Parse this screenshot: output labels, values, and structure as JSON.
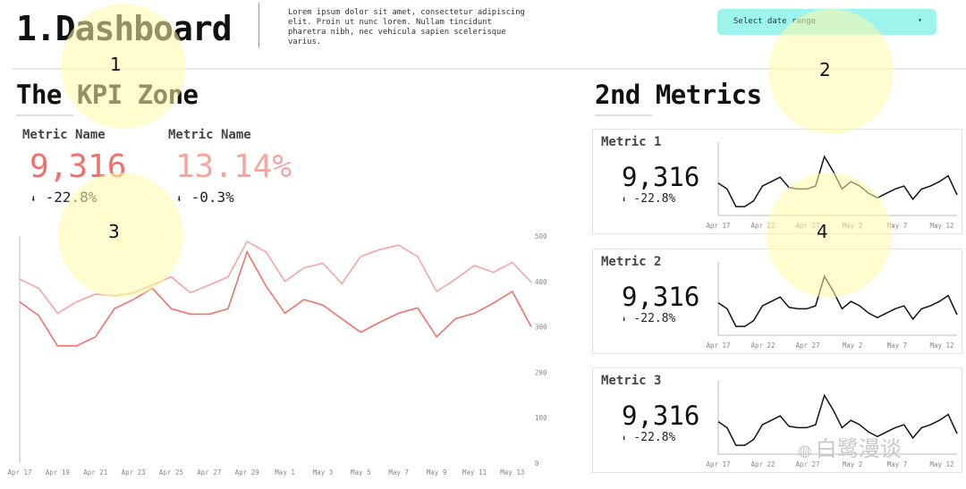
{
  "header": {
    "title": "1.Dashboard",
    "description": "Lorem ipsum dolor sit amet, consectetur adipiscing elit. Proin ut nunc lorem. Nullam tincidunt pharetra nibh, nec vehicula sapien scelerisque varius.",
    "date_range_placeholder": "Select date range"
  },
  "kpi": {
    "section_title": "The KPI Zone",
    "metrics": [
      {
        "name": "Metric Name",
        "value": "9,316",
        "delta": "-22.8%",
        "color": "#f0706a"
      },
      {
        "name": "Metric Name",
        "value": "13.14%",
        "delta": "-0.3%",
        "color": "#f6a59f"
      }
    ]
  },
  "secondary": {
    "section_title": "2nd Metrics",
    "cards": [
      {
        "name": "Metric 1",
        "value": "9,316",
        "delta": "-22.8%"
      },
      {
        "name": "Metric 2",
        "value": "9,316",
        "delta": "-22.8%"
      },
      {
        "name": "Metric 3",
        "value": "9,316",
        "delta": "-22.8%"
      }
    ]
  },
  "annotations": [
    "1",
    "2",
    "3",
    "4"
  ],
  "watermark": "白鹭漫谈",
  "chart_data": [
    {
      "type": "line",
      "x": [
        "Apr 17",
        "Apr 18",
        "Apr 19",
        "Apr 20",
        "Apr 21",
        "Apr 22",
        "Apr 23",
        "Apr 24",
        "Apr 25",
        "Apr 26",
        "Apr 27",
        "Apr 28",
        "Apr 29",
        "Apr 30",
        "May 1",
        "May 2",
        "May 3",
        "May 4",
        "May 5",
        "May 6",
        "May 7",
        "May 8",
        "May 9",
        "May 10",
        "May 11",
        "May 12",
        "May 13",
        "May 14"
      ],
      "x_tick_labels": [
        "Apr 17",
        "Apr 19",
        "Apr 21",
        "Apr 23",
        "Apr 25",
        "Apr 27",
        "Apr 29",
        "May 1",
        "May 3",
        "May 5",
        "May 7",
        "May 9",
        "May 11",
        "May 13"
      ],
      "ylim": [
        0,
        500
      ],
      "y_ticks": [
        0,
        100,
        200,
        300,
        400,
        500
      ],
      "series": [
        {
          "color": "#f6a59f",
          "values": [
            405,
            385,
            330,
            355,
            372,
            368,
            375,
            392,
            410,
            375,
            392,
            410,
            488,
            465,
            400,
            430,
            440,
            395,
            455,
            470,
            480,
            455,
            378,
            405,
            435,
            420,
            442,
            398
          ]
        },
        {
          "color": "#f0706a",
          "values": [
            355,
            325,
            258,
            258,
            278,
            340,
            360,
            385,
            340,
            328,
            328,
            340,
            465,
            390,
            330,
            360,
            348,
            318,
            288,
            310,
            330,
            342,
            278,
            318,
            330,
            352,
            378,
            300
          ]
        }
      ]
    },
    {
      "type": "line",
      "x_tick_labels": [
        "Apr 17",
        "Apr 22",
        "Apr 27",
        "May 2",
        "May 7",
        "May 12"
      ],
      "series": [
        {
          "color": "#111111",
          "values": [
            52,
            48,
            36,
            36,
            40,
            50,
            53,
            56,
            49,
            48,
            48,
            50,
            70,
            60,
            48,
            53,
            50,
            45,
            42,
            45,
            48,
            50,
            41,
            48,
            50,
            53,
            57,
            44
          ]
        }
      ]
    },
    {
      "type": "line",
      "x_tick_labels": [
        "Apr 17",
        "Apr 22",
        "Apr 27",
        "May 2",
        "May 7",
        "May 12"
      ],
      "series": [
        {
          "color": "#111111",
          "values": [
            52,
            48,
            36,
            36,
            40,
            50,
            53,
            56,
            49,
            48,
            48,
            50,
            70,
            60,
            48,
            53,
            50,
            45,
            42,
            45,
            48,
            50,
            41,
            48,
            50,
            53,
            57,
            44
          ]
        }
      ]
    },
    {
      "type": "line",
      "x_tick_labels": [
        "Apr 17",
        "Apr 22",
        "Apr 27",
        "May 2",
        "May 7",
        "May 12"
      ],
      "series": [
        {
          "color": "#111111",
          "values": [
            52,
            48,
            36,
            36,
            40,
            50,
            53,
            56,
            49,
            48,
            48,
            50,
            70,
            60,
            48,
            53,
            50,
            45,
            42,
            45,
            48,
            50,
            41,
            48,
            50,
            53,
            57,
            44
          ]
        }
      ]
    }
  ]
}
